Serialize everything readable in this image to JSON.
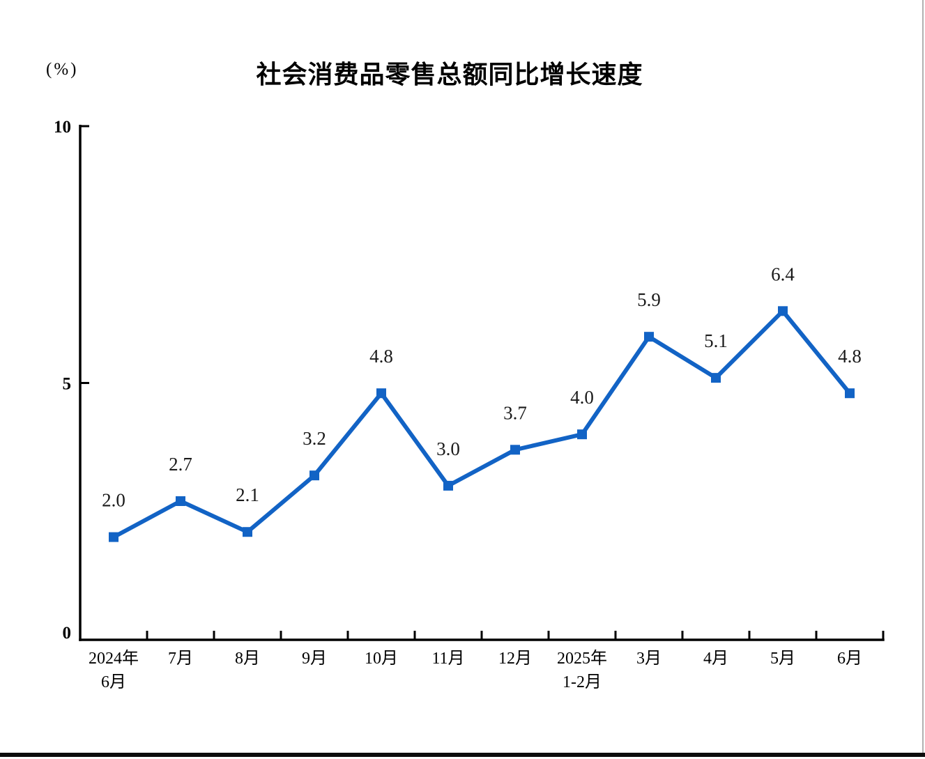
{
  "title": "社会消费品零售总额同比增长速度",
  "unit_label": "(%)",
  "chart_data": {
    "type": "line",
    "categories": [
      [
        "2024年",
        "6月"
      ],
      [
        "7月"
      ],
      [
        "8月"
      ],
      [
        "9月"
      ],
      [
        "10月"
      ],
      [
        "11月"
      ],
      [
        "12月"
      ],
      [
        "2025年",
        "1-2月"
      ],
      [
        "3月"
      ],
      [
        "4月"
      ],
      [
        "5月"
      ],
      [
        "6月"
      ]
    ],
    "values": [
      2.0,
      2.7,
      2.1,
      3.2,
      4.8,
      3.0,
      3.7,
      4.0,
      5.9,
      5.1,
      6.4,
      4.8
    ],
    "value_labels": [
      "2.0",
      "2.7",
      "2.1",
      "3.2",
      "4.8",
      "3.0",
      "3.7",
      "4.0",
      "5.9",
      "5.1",
      "6.4",
      "4.8"
    ],
    "title": "社会消费品零售总额同比增长速度",
    "xlabel": "",
    "ylabel": "(%)",
    "ylim": [
      0,
      10
    ],
    "y_ticks": [
      0,
      5,
      10
    ],
    "grid": false,
    "legend": false,
    "series_color": "#1263C5",
    "axis_color": "#000000",
    "label_color": "#1a1a1a",
    "marker": "square"
  },
  "window": {
    "right_border_color": "#b0b0b0",
    "bottom_bar_color": "#0d0d0d"
  }
}
